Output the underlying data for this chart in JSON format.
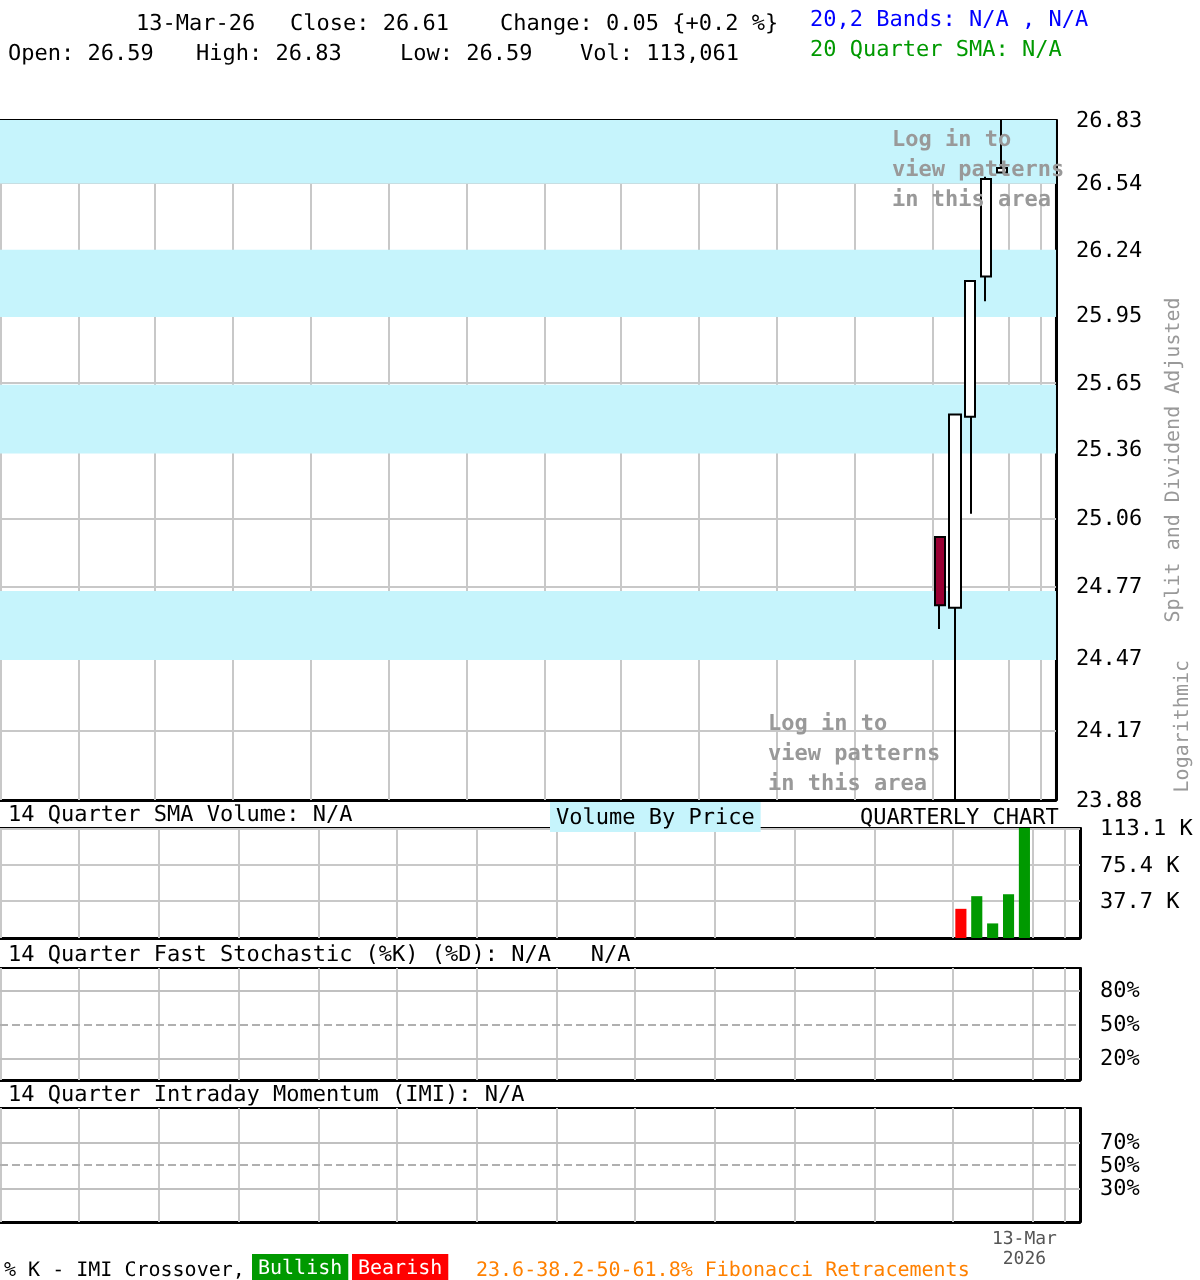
{
  "chart_data": [
    {
      "type": "candlestick",
      "log": true,
      "grid": true,
      "tick_labels": "y",
      "ylabel": "Split and Dividend Adjusted",
      "ylim": [
        23.88,
        26.83
      ],
      "yticks": [
        23.88,
        24.17,
        24.47,
        24.77,
        25.06,
        25.36,
        25.65,
        25.95,
        26.24,
        26.54,
        26.83
      ],
      "annotations": [
        "13-Mar-26",
        "Close: 26.61",
        "Change: 0.05 {+0.2 %}",
        "Open: 26.59",
        "High: 26.83",
        "Low: 26.59",
        "Vol: 113,061",
        "20,2 Bands: N/A , N/A",
        "20 Quarter SMA: N/A",
        "Log in to\nview patterns\nin this area",
        "Log in to\nview patterns\nin this area",
        "Logarithmic"
      ],
      "categories": [
        null,
        null,
        null,
        null,
        null,
        null,
        null,
        null,
        null,
        null,
        null,
        null,
        null,
        null,
        null,
        null,
        null,
        null,
        null,
        null,
        null,
        null,
        null,
        null,
        null,
        null,
        null,
        null,
        null,
        null,
        null,
        null,
        null,
        null,
        null,
        null,
        null,
        null,
        null,
        null,
        null,
        null,
        null,
        null,
        null,
        null,
        null,
        null,
        null,
        null,
        null,
        null,
        null,
        null,
        null,
        null,
        null,
        null,
        null,
        null,
        null,
        null,
        null,
        null,
        null,
        null,
        null,
        null
      ],
      "ohlc": [
        null,
        null,
        null,
        null,
        null,
        null,
        null,
        null,
        null,
        null,
        null,
        null,
        null,
        null,
        null,
        null,
        null,
        null,
        null,
        null,
        null,
        null,
        null,
        null,
        null,
        null,
        null,
        null,
        null,
        null,
        null,
        null,
        null,
        null,
        null,
        null,
        null,
        null,
        null,
        null,
        null,
        null,
        null,
        null,
        null,
        null,
        null,
        null,
        null,
        null,
        null,
        null,
        null,
        null,
        null,
        null,
        null,
        null,
        null,
        null,
        [
          24.98,
          24.98,
          24.59,
          24.69
        ],
        [
          24.68,
          25.51,
          23.88,
          25.51
        ],
        [
          25.5,
          26.1,
          25.08,
          26.1
        ],
        [
          26.12,
          26.57,
          26.01,
          26.56
        ],
        [
          26.59,
          26.83,
          26.59,
          26.61
        ],
        null,
        null,
        null
      ],
      "colors": [
        null,
        null,
        null,
        null,
        null,
        null,
        null,
        null,
        null,
        null,
        null,
        null,
        null,
        null,
        null,
        null,
        null,
        null,
        null,
        null,
        null,
        null,
        null,
        null,
        null,
        null,
        null,
        null,
        null,
        null,
        null,
        null,
        null,
        null,
        null,
        null,
        null,
        null,
        null,
        null,
        null,
        null,
        null,
        null,
        null,
        null,
        null,
        null,
        null,
        null,
        null,
        null,
        null,
        null,
        null,
        null,
        null,
        null,
        null,
        null,
        "#990033",
        "#ffffff",
        "#ffffff",
        "#ffffff",
        "#ffffff",
        null,
        null,
        null
      ],
      "bands": [
        {
          "axis": "y",
          "from": 26.54,
          "to": 26.83,
          "color": "#c6f4fc"
        },
        {
          "axis": "y",
          "from": 25.94,
          "to": 26.24,
          "color": "#c6f4fc"
        },
        {
          "axis": "y",
          "from": 25.34,
          "to": 25.64,
          "color": "#c6f4fc"
        },
        {
          "axis": "y",
          "from": 24.46,
          "to": 24.75,
          "color": "#c6f4fc"
        }
      ]
    },
    {
      "type": "bar",
      "title": "14 Quarter SMA Volume: N/A",
      "grid": true,
      "tick_labels": "y",
      "annotations": [
        "Volume By Price",
        "QUARTERLY CHART"
      ],
      "ylim": [
        0,
        113.1
      ],
      "yticks": [
        {
          "value": 37.7,
          "label": "37.7 K"
        },
        {
          "value": 75.4,
          "label": "75.4 K"
        },
        {
          "value": 113.1,
          "label": "113.1 K"
        }
      ],
      "categories": [
        null,
        null,
        null,
        null,
        null,
        null,
        null,
        null,
        null,
        null,
        null,
        null,
        null,
        null,
        null,
        null,
        null,
        null,
        null,
        null,
        null,
        null,
        null,
        null,
        null,
        null,
        null,
        null,
        null,
        null,
        null,
        null,
        null,
        null,
        null,
        null,
        null,
        null,
        null,
        null,
        null,
        null,
        null,
        null,
        null,
        null,
        null,
        null,
        null,
        null,
        null,
        null,
        null,
        null,
        null,
        null,
        null,
        null,
        null,
        null,
        null,
        null,
        null,
        null,
        null,
        null,
        null,
        null
      ],
      "values": [
        null,
        null,
        null,
        null,
        null,
        null,
        null,
        null,
        null,
        null,
        null,
        null,
        null,
        null,
        null,
        null,
        null,
        null,
        null,
        null,
        null,
        null,
        null,
        null,
        null,
        null,
        null,
        null,
        null,
        null,
        null,
        null,
        null,
        null,
        null,
        null,
        null,
        null,
        null,
        null,
        null,
        null,
        null,
        null,
        null,
        null,
        null,
        null,
        null,
        null,
        null,
        null,
        null,
        null,
        null,
        null,
        null,
        null,
        null,
        null,
        30,
        43,
        15,
        45,
        113.1,
        null,
        null,
        null
      ],
      "colors": [
        null,
        null,
        null,
        null,
        null,
        null,
        null,
        null,
        null,
        null,
        null,
        null,
        null,
        null,
        null,
        null,
        null,
        null,
        null,
        null,
        null,
        null,
        null,
        null,
        null,
        null,
        null,
        null,
        null,
        null,
        null,
        null,
        null,
        null,
        null,
        null,
        null,
        null,
        null,
        null,
        null,
        null,
        null,
        null,
        null,
        null,
        null,
        null,
        null,
        null,
        null,
        null,
        null,
        null,
        null,
        null,
        null,
        null,
        null,
        null,
        "#ff0000",
        "#009900",
        "#009900",
        "#009900",
        "#009900",
        null,
        null,
        null
      ]
    },
    {
      "type": "line",
      "title": "14 Quarter Fast Stochastic (%K) (%D): N/A   N/A",
      "grid": "x",
      "tick_labels": "y",
      "ylim": [
        0,
        100
      ],
      "yticks": [
        {
          "value": 20,
          "label": "20%"
        },
        {
          "value": 50,
          "label": "50%"
        },
        {
          "value": 80,
          "label": "80%"
        }
      ],
      "categories": [
        null,
        null,
        null,
        null,
        null,
        null,
        null,
        null,
        null,
        null,
        null,
        null,
        null,
        null,
        null,
        null,
        null,
        null,
        null,
        null,
        null,
        null,
        null,
        null,
        null,
        null,
        null,
        null,
        null,
        null,
        null,
        null,
        null,
        null,
        null,
        null,
        null,
        null,
        null,
        null,
        null,
        null,
        null,
        null,
        null,
        null,
        null,
        null,
        null,
        null,
        null,
        null,
        null,
        null,
        null,
        null,
        null,
        null,
        null,
        null,
        null,
        null,
        null,
        null,
        null,
        null,
        null,
        null
      ],
      "ref_lines": [
        {
          "axis": "y",
          "value": 80,
          "color": "#c0c0c0",
          "line_style": "solid"
        },
        {
          "axis": "y",
          "value": 50,
          "color": "#b0b0b0",
          "line_style": "dashed"
        },
        {
          "axis": "y",
          "value": 20,
          "color": "#c0c0c0",
          "line_style": "solid"
        }
      ]
    },
    {
      "type": "line",
      "title": "14 Quarter Intraday Momentum (IMI): N/A",
      "grid": "x",
      "ylim": [
        0,
        100
      ],
      "yticks": [
        {
          "value": 30,
          "label": "30%"
        },
        {
          "value": 50,
          "label": "50%"
        },
        {
          "value": 70,
          "label": "70%"
        }
      ],
      "annotations": [
        "% K - IMI Crossover,",
        "Bullish",
        "Bearish",
        "23.6-38.2-50-61.8% Fibonacci Retracements"
      ],
      "categories": [
        null,
        null,
        null,
        null,
        null,
        null,
        null,
        null,
        null,
        null,
        null,
        null,
        null,
        null,
        null,
        null,
        null,
        null,
        null,
        null,
        null,
        null,
        null,
        null,
        null,
        null,
        null,
        null,
        null,
        null,
        null,
        null,
        null,
        null,
        null,
        null,
        null,
        null,
        null,
        null,
        null,
        null,
        null,
        null,
        null,
        null,
        null,
        null,
        null,
        null,
        null,
        null,
        null,
        null,
        null,
        null,
        null,
        null,
        null,
        null,
        null,
        null,
        null,
        null,
        "13-Mar\n2026",
        null,
        null,
        null
      ],
      "ref_lines": [
        {
          "axis": "y",
          "value": 70,
          "color": "#c0c0c0",
          "line_style": "solid"
        },
        {
          "axis": "y",
          "value": 50,
          "color": "#b0b0b0",
          "line_style": "dashed"
        },
        {
          "axis": "y",
          "value": 30,
          "color": "#c0c0c0",
          "line_style": "solid"
        }
      ]
    }
  ]
}
